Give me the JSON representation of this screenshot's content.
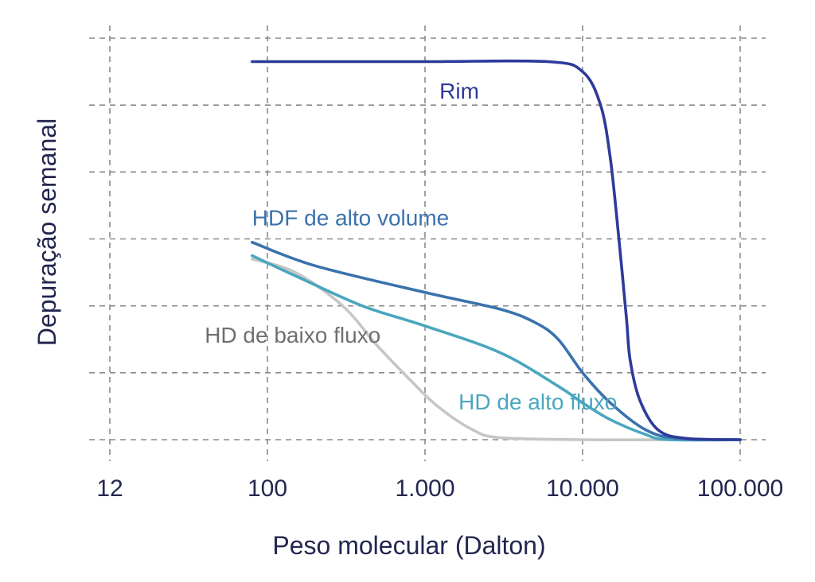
{
  "chart_data": {
    "type": "line",
    "title": "",
    "xlabel": "Peso molecular (Dalton)",
    "ylabel": "Depuração semanal",
    "x_scale": "log",
    "xlim": [
      10,
      100000
    ],
    "ylim": [
      0,
      6
    ],
    "grid": true,
    "x_ticks": [
      {
        "value": 12,
        "label": "12"
      },
      {
        "value": 100,
        "label": "100"
      },
      {
        "value": 1000,
        "label": "1.000"
      },
      {
        "value": 10000,
        "label": "10.000"
      },
      {
        "value": 100000,
        "label": "100.000"
      }
    ],
    "y_gridlines": [
      0,
      1,
      2,
      3,
      4,
      5,
      6
    ],
    "series": [
      {
        "name": "Rim",
        "color": "#2e3a9a",
        "points": [
          [
            80,
            5.65
          ],
          [
            1000,
            5.65
          ],
          [
            6000,
            5.65
          ],
          [
            10000,
            5.5
          ],
          [
            13000,
            5.0
          ],
          [
            15000,
            4.2
          ],
          [
            17000,
            3.0
          ],
          [
            19000,
            1.8
          ],
          [
            20000,
            1.2
          ],
          [
            23000,
            0.6
          ],
          [
            30000,
            0.15
          ],
          [
            45000,
            0.02
          ],
          [
            100000,
            0.0
          ]
        ]
      },
      {
        "name": "HDF de alto volume",
        "color": "#3a72ad",
        "points": [
          [
            80,
            2.95
          ],
          [
            200,
            2.6
          ],
          [
            1000,
            2.2
          ],
          [
            3000,
            1.95
          ],
          [
            5000,
            1.75
          ],
          [
            7000,
            1.5
          ],
          [
            10000,
            1.0
          ],
          [
            15000,
            0.55
          ],
          [
            25000,
            0.15
          ],
          [
            40000,
            0.02
          ],
          [
            100000,
            0.0
          ]
        ]
      },
      {
        "name": "HD de alto fluxo",
        "color": "#4aa6bf",
        "points": [
          [
            80,
            2.75
          ],
          [
            150,
            2.45
          ],
          [
            400,
            2.0
          ],
          [
            1000,
            1.7
          ],
          [
            3000,
            1.3
          ],
          [
            7000,
            0.8
          ],
          [
            10000,
            0.55
          ],
          [
            15000,
            0.3
          ],
          [
            25000,
            0.08
          ],
          [
            35000,
            0.0
          ],
          [
            100000,
            0.0
          ]
        ]
      },
      {
        "name": "HD de baixo fluxo",
        "color": "#c6c6c6",
        "points": [
          [
            80,
            2.7
          ],
          [
            150,
            2.5
          ],
          [
            300,
            2.0
          ],
          [
            500,
            1.4
          ],
          [
            800,
            0.9
          ],
          [
            1200,
            0.5
          ],
          [
            2000,
            0.15
          ],
          [
            3000,
            0.03
          ],
          [
            10000,
            0.0
          ],
          [
            40000,
            0.0
          ]
        ]
      }
    ],
    "annotations": [
      {
        "text": "Rim",
        "series": 0,
        "at": [
          1650,
          5.1
        ],
        "anchor": "middle"
      },
      {
        "text": "HDF de alto volume",
        "series": 1,
        "at": [
          80,
          3.2
        ],
        "anchor": "start"
      },
      {
        "text": "HD de alto fluxo",
        "series": 2,
        "at": [
          5200,
          0.45
        ],
        "anchor": "middle"
      },
      {
        "text": "HD de baixo fluxo",
        "series": 3,
        "at": [
          40,
          1.45
        ],
        "anchor": "start"
      }
    ]
  }
}
